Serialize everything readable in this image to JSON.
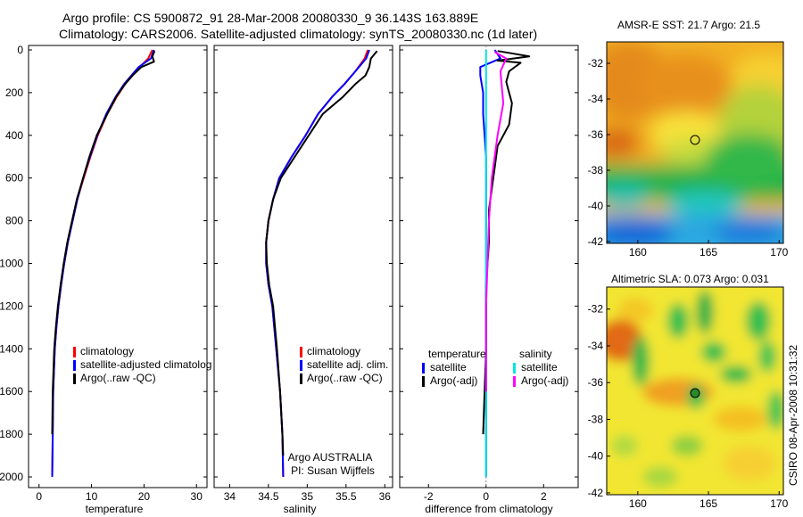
{
  "header": {
    "line1": "Argo profile: CS 5900872_91 28-Mar-2008 20080330_9 36.143S 163.889E",
    "line2": "Climatology: CARS2006. Satellite-adjusted climatology: synTS_20080330.nc (1d later)"
  },
  "footer": {
    "agency": "Argo AUSTRALIA",
    "pi": "PI: Susan Wijffels",
    "stamp": "CSIRO 08-Apr-2008 10:31:32"
  },
  "colors": {
    "climatology": "#ff0000",
    "satellite": "#0000ff",
    "argo": "#000000",
    "sat_salinity": "#00e5e5",
    "argo_salinity": "#ff00ff"
  },
  "chart_data": [
    {
      "type": "line",
      "xlabel": "temperature",
      "ylabel": "",
      "xlim": [
        -2,
        32
      ],
      "ylim": [
        2050,
        0
      ],
      "xticks": [
        "0",
        "10",
        "20",
        "30"
      ],
      "yticks": [
        "0",
        "200",
        "400",
        "600",
        "800",
        "1000",
        "1200",
        "1400",
        "1600",
        "1800",
        "2000"
      ],
      "legend": [
        "climatology",
        "satellite-adjusted climatolog",
        "Argo(..raw -QC)"
      ],
      "series": [
        {
          "name": "climatology",
          "x": [
            21.6,
            20.8,
            19.2,
            17.8,
            16.4,
            14.8,
            13.0,
            11.2,
            9.8,
            8.5,
            7.3,
            6.4,
            5.5,
            4.8,
            4.2,
            3.7,
            3.3,
            3.0,
            2.7,
            2.6,
            2.5
          ],
          "y": [
            0,
            40,
            80,
            120,
            160,
            220,
            300,
            400,
            500,
            600,
            700,
            800,
            900,
            1000,
            1100,
            1200,
            1300,
            1400,
            1600,
            1800,
            2000
          ]
        },
        {
          "name": "satellite-adjusted climatolog",
          "x": [
            21.9,
            21.3,
            19.0,
            17.6,
            16.2,
            14.6,
            12.8,
            11.1,
            9.7,
            8.4,
            7.3,
            6.4,
            5.5,
            4.8,
            4.2,
            3.7,
            3.3,
            3.0,
            2.7,
            2.6,
            2.5
          ],
          "y": [
            0,
            40,
            80,
            120,
            160,
            220,
            300,
            400,
            500,
            600,
            700,
            800,
            900,
            1000,
            1100,
            1200,
            1300,
            1400,
            1600,
            1800,
            2000
          ]
        },
        {
          "name": "Argo(..raw -QC)",
          "x": [
            22.0,
            21.6,
            21.9,
            19.5,
            17.8,
            16.4,
            14.7,
            13.0,
            11.0,
            9.6,
            8.4,
            7.2,
            6.3,
            5.4,
            4.7,
            4.1,
            3.6,
            3.2,
            2.9,
            2.6,
            2.5
          ],
          "y": [
            5,
            30,
            55,
            80,
            120,
            160,
            220,
            300,
            400,
            500,
            600,
            700,
            800,
            900,
            1000,
            1100,
            1200,
            1300,
            1400,
            1600,
            1800
          ]
        }
      ]
    },
    {
      "type": "line",
      "xlabel": "salinity",
      "ylabel": "",
      "xlim": [
        33.8,
        36.1
      ],
      "ylim": [
        2050,
        0
      ],
      "xticks": [
        "34",
        "34.5",
        "35",
        "35.5",
        "36"
      ],
      "legend": [
        "climatology",
        "satellite adj. clim.",
        "Argo(..raw -QC)"
      ],
      "series": [
        {
          "name": "climatology",
          "x": [
            35.78,
            35.74,
            35.62,
            35.48,
            35.32,
            35.14,
            34.98,
            34.8,
            34.64,
            34.56,
            34.5,
            34.47,
            34.47,
            34.5,
            34.55,
            34.6,
            34.65,
            34.68,
            34.69
          ],
          "y": [
            0,
            40,
            100,
            160,
            220,
            300,
            400,
            500,
            600,
            700,
            800,
            900,
            1000,
            1100,
            1200,
            1400,
            1600,
            1800,
            2000
          ]
        },
        {
          "name": "satellite adj. clim.",
          "x": [
            35.8,
            35.76,
            35.62,
            35.48,
            35.32,
            35.14,
            34.98,
            34.8,
            34.64,
            34.56,
            34.5,
            34.47,
            34.47,
            34.5,
            34.55,
            34.6,
            34.65,
            34.68,
            34.69
          ],
          "y": [
            0,
            40,
            100,
            160,
            220,
            300,
            400,
            500,
            600,
            700,
            800,
            900,
            1000,
            1100,
            1200,
            1400,
            1600,
            1800,
            2000
          ]
        },
        {
          "name": "Argo(..raw -QC)",
          "x": [
            35.9,
            35.82,
            35.8,
            35.75,
            35.62,
            35.46,
            35.2,
            35.02,
            34.84,
            34.66,
            34.56,
            34.5,
            34.47,
            34.48,
            34.51,
            34.56,
            34.61,
            34.65,
            34.68,
            34.69
          ],
          "y": [
            5,
            40,
            80,
            120,
            160,
            220,
            300,
            400,
            500,
            600,
            700,
            800,
            900,
            1000,
            1100,
            1200,
            1400,
            1600,
            1800,
            1900
          ]
        }
      ]
    },
    {
      "type": "line",
      "xlabel": "difference from climatology",
      "ylabel": "",
      "xlim": [
        -3,
        3.2
      ],
      "ylim": [
        2050,
        0
      ],
      "xticks": [
        "-2",
        "0",
        "2"
      ],
      "legend_titles": [
        "temperature",
        "salinity"
      ],
      "legend": [
        "satellite",
        "Argo(-adj)",
        "satellite",
        "Argo(-adj)"
      ],
      "series": [
        {
          "name": "satellite",
          "x": [
            0.3,
            0.5,
            -0.2,
            -0.2,
            -0.1,
            -0.1,
            0.0,
            0.0,
            0.0,
            0.0,
            0.0,
            0.0
          ],
          "y": [
            0,
            40,
            80,
            120,
            200,
            300,
            500,
            800,
            1100,
            1400,
            1700,
            2000
          ]
        },
        {
          "name": "Argo(-adj)",
          "x": [
            0.4,
            1.5,
            0.4,
            1.2,
            0.8,
            0.7,
            0.9,
            0.8,
            0.4,
            0.3,
            0.2,
            0.1,
            0.1,
            0.0,
            0.0,
            -0.1
          ],
          "y": [
            5,
            30,
            50,
            60,
            100,
            150,
            250,
            350,
            450,
            550,
            650,
            750,
            900,
            1100,
            1400,
            1800
          ]
        },
        {
          "name": "satellite",
          "x": [
            0.0,
            0.0,
            0.0,
            0.0,
            0.0,
            0.0
          ],
          "y": [
            0,
            400,
            800,
            1200,
            1600,
            2000
          ]
        },
        {
          "name": "Argo(-adj)",
          "x": [
            0.3,
            0.7,
            0.5,
            0.6,
            0.4,
            0.2,
            0.1,
            0.0,
            0.0
          ],
          "y": [
            10,
            40,
            100,
            250,
            400,
            600,
            800,
            1200,
            1600
          ]
        }
      ]
    },
    {
      "type": "heatmap",
      "title": "AMSR-E SST: 21.7 Argo: 21.5",
      "xticks": [
        "160",
        "165",
        "170"
      ],
      "yticks": [
        "-32",
        "-34",
        "-36",
        "-38",
        "-40",
        "-42"
      ],
      "marker": {
        "lon": 163.9,
        "lat": -36.1
      }
    },
    {
      "type": "heatmap",
      "title": "Altimetric SLA: 0.073 Argo: 0.031",
      "xticks": [
        "160",
        "165",
        "170"
      ],
      "yticks": [
        "-32",
        "-34",
        "-36",
        "-38",
        "-40",
        "-42"
      ],
      "marker": {
        "lon": 163.9,
        "lat": -36.1
      }
    }
  ]
}
